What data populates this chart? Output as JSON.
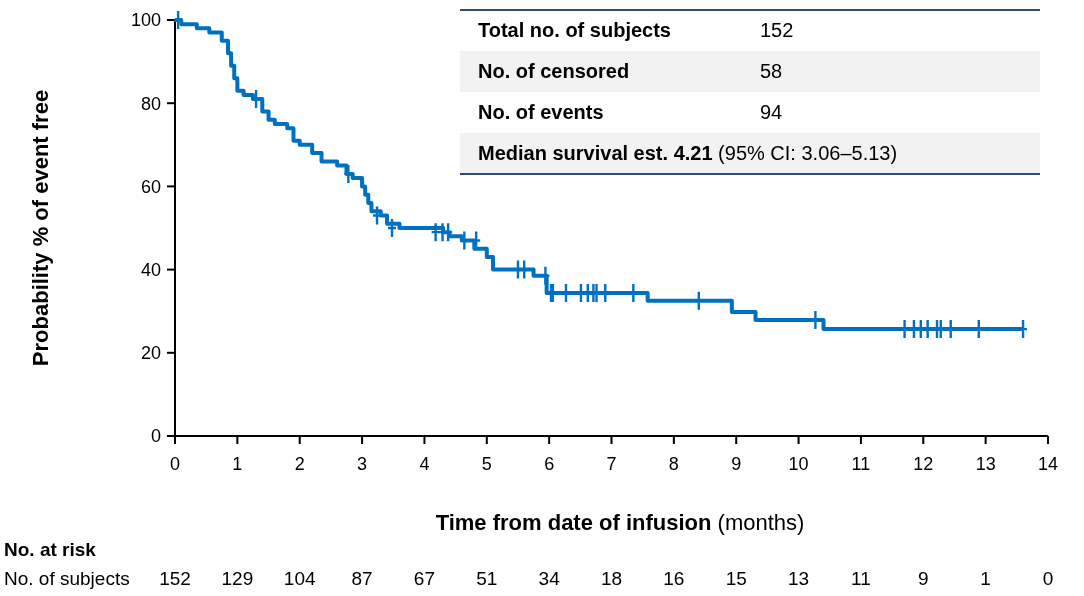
{
  "chart_data": {
    "type": "step",
    "xlabel": "Time from date of infusion (months)",
    "ylabel": "Probability % of event free",
    "xlim": [
      0,
      14
    ],
    "ylim": [
      0,
      100
    ],
    "xticks": [
      0,
      1,
      2,
      3,
      4,
      5,
      6,
      7,
      8,
      9,
      10,
      11,
      12,
      13,
      14
    ],
    "yticks": [
      0,
      20,
      40,
      60,
      80,
      100
    ],
    "grid": false,
    "series": [
      {
        "color": "#0070c0",
        "x": [
          0,
          0.1,
          0.35,
          0.55,
          0.75,
          0.85,
          0.9,
          0.95,
          1.0,
          1.1,
          1.25,
          1.4,
          1.5,
          1.6,
          1.8,
          1.9,
          2.0,
          2.2,
          2.35,
          2.6,
          2.75,
          2.85,
          3.0,
          3.05,
          3.1,
          3.15,
          3.3,
          3.4,
          3.6,
          4.3,
          4.4,
          4.6,
          4.8,
          5.0,
          5.1,
          5.75,
          5.96,
          7.58,
          8.93,
          9.31,
          10.4,
          13.6
        ],
        "values": [
          100,
          99,
          98,
          97,
          95,
          92,
          89,
          86,
          83,
          82,
          81,
          78,
          76,
          75,
          74,
          71,
          70,
          68,
          66,
          65,
          63,
          62,
          60,
          58,
          56,
          54,
          53,
          51,
          50,
          49,
          48,
          47,
          45,
          43,
          40,
          38.5,
          34.4,
          32.5,
          29.8,
          27.9,
          25.7,
          25.7
        ]
      },
      {
        "type": "scatter",
        "marker": "cross",
        "color": "#0070c0",
        "x": [
          0.05,
          1.3,
          2.78,
          3.24,
          3.48,
          4.18,
          4.29,
          4.38,
          4.64,
          4.83,
          5.5,
          5.6,
          5.94,
          6.03,
          6.06,
          6.27,
          6.51,
          6.62,
          6.71,
          6.76,
          6.9,
          7.35,
          8.4,
          10.27,
          11.7,
          11.85,
          11.96,
          12.07,
          12.22,
          12.28,
          12.44,
          12.89,
          13.6
        ],
        "values": [
          100,
          81,
          63,
          53,
          50,
          49,
          49,
          49,
          47,
          47,
          40,
          40,
          38.5,
          34.4,
          34.4,
          34.4,
          34.4,
          34.4,
          34.4,
          34.4,
          34.4,
          34.4,
          32.5,
          27.9,
          25.7,
          25.7,
          25.7,
          25.7,
          25.7,
          25.7,
          25.7,
          25.7,
          25.7
        ]
      }
    ],
    "annotations": [
      "Total no. of subjects\t152",
      "No. of censored\t58",
      "No. of events\t94",
      "Median survival est. 4.21\t(95% CI: 3.06–5.13)",
      "No. at risk",
      "No. of subjects\t152\t129\t104\t87\t67\t51\t34\t18\t16\t15\t13\t11\t9\t1\t0"
    ]
  }
}
